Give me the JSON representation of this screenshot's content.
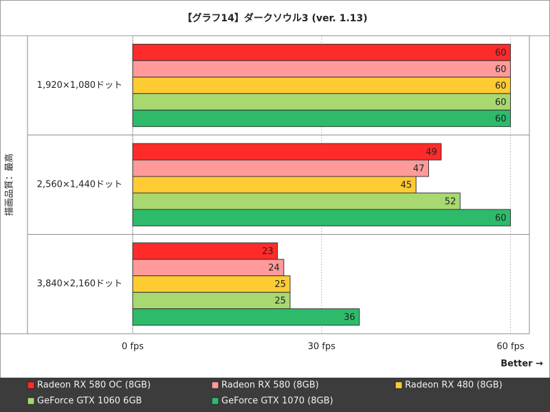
{
  "chart_data": {
    "type": "bar",
    "orientation": "horizontal",
    "title": "【グラフ14】ダークソウル3 (ver. 1.13)",
    "y_axis_label": "描画品質：最高",
    "annotation": "Better →",
    "categories": [
      "1,920×1,080ドット",
      "2,560×1,440ドット",
      "3,840×2,160ドット"
    ],
    "series": [
      {
        "name": "Radeon RX 580 OC (8GB)",
        "color": "#ff2b2b",
        "values": [
          60,
          49,
          23
        ]
      },
      {
        "name": "Radeon RX 580 (8GB)",
        "color": "#ff9a9a",
        "values": [
          60,
          47,
          24
        ]
      },
      {
        "name": "Radeon RX 480 (8GB)",
        "color": "#ffcb33",
        "values": [
          60,
          45,
          25
        ]
      },
      {
        "name": "GeForce GTX 1060 6GB",
        "color": "#a8d870",
        "values": [
          60,
          52,
          25
        ]
      },
      {
        "name": "GeForce GTX 1070 (8GB)",
        "color": "#2dbb6b",
        "values": [
          60,
          60,
          36
        ]
      }
    ],
    "xlim": [
      0,
      63
    ],
    "xticks": [
      {
        "value": 0,
        "label": "0 fps"
      },
      {
        "value": 30,
        "label": "30 fps"
      },
      {
        "value": 60,
        "label": "60 fps"
      }
    ],
    "grid": true
  }
}
